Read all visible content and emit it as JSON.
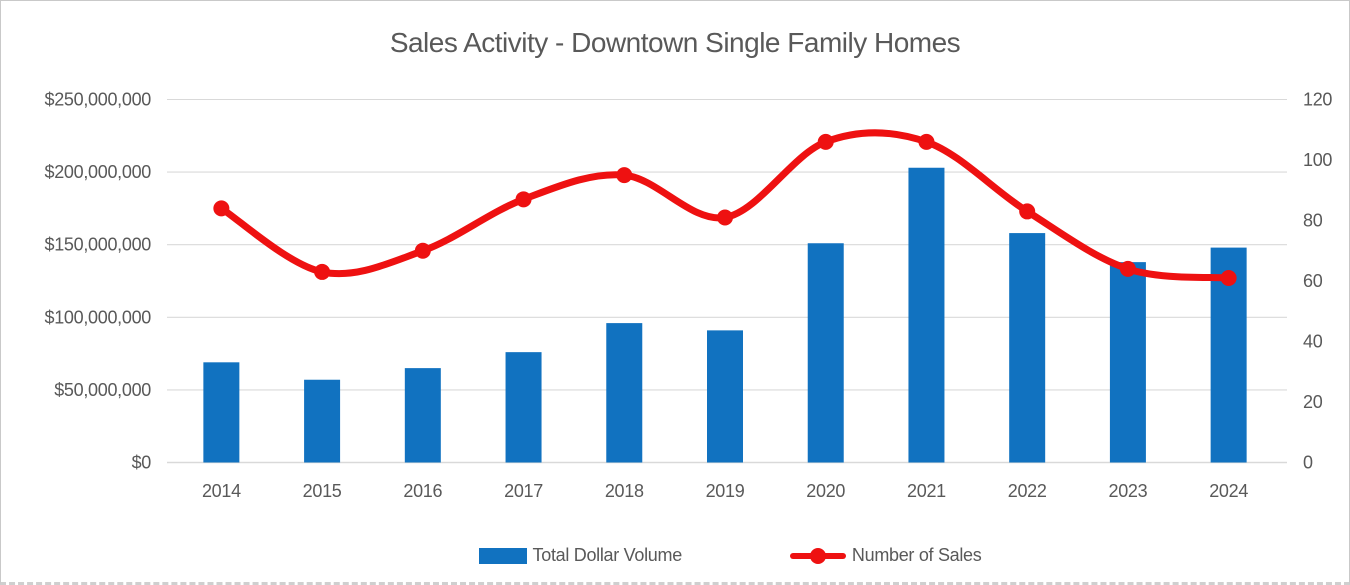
{
  "title": "Sales Activity - Downtown Single Family Homes",
  "colors": {
    "bar": "#1172c0",
    "line": "#ee1111",
    "grid": "#d9d9d9",
    "axis_line": "#d9d9d9",
    "text": "#595959",
    "background": "#ffffff",
    "border": "#c9c9c9"
  },
  "legend": [
    {
      "label": "Total Dollar Volume",
      "type": "bar"
    },
    {
      "label": "Number of Sales",
      "type": "line"
    }
  ],
  "chart_data": {
    "type": "combo",
    "title": "Sales Activity - Downtown Single Family Homes",
    "categories": [
      "2014",
      "2015",
      "2016",
      "2017",
      "2018",
      "2019",
      "2020",
      "2021",
      "2022",
      "2023",
      "2024"
    ],
    "series": [
      {
        "name": "Total Dollar Volume",
        "type": "bar",
        "axis": "left",
        "values": [
          69000000,
          57000000,
          65000000,
          76000000,
          96000000,
          91000000,
          151000000,
          203000000,
          158000000,
          138000000,
          148000000
        ]
      },
      {
        "name": "Number of Sales",
        "type": "line",
        "axis": "right",
        "smooth": true,
        "values": [
          84,
          63,
          70,
          87,
          95,
          81,
          106,
          106,
          83,
          64,
          61
        ]
      }
    ],
    "y_axis_left": {
      "min": 0,
      "max": 250000000,
      "tick_interval": 50000000,
      "ticks": [
        {
          "value": 0,
          "label": "$0"
        },
        {
          "value": 50000000,
          "label": "$50,000,000"
        },
        {
          "value": 100000000,
          "label": "$100,000,000"
        },
        {
          "value": 150000000,
          "label": "$150,000,000"
        },
        {
          "value": 200000000,
          "label": "$200,000,000"
        },
        {
          "value": 250000000,
          "label": "$250,000,000"
        }
      ]
    },
    "y_axis_right": {
      "min": 0,
      "max": 120,
      "tick_interval": 20,
      "ticks": [
        {
          "value": 0,
          "label": "0"
        },
        {
          "value": 20,
          "label": "20"
        },
        {
          "value": 40,
          "label": "40"
        },
        {
          "value": 60,
          "label": "60"
        },
        {
          "value": 80,
          "label": "80"
        },
        {
          "value": 100,
          "label": "100"
        },
        {
          "value": 120,
          "label": "120"
        }
      ]
    },
    "grid": true,
    "legend_position": "bottom"
  }
}
